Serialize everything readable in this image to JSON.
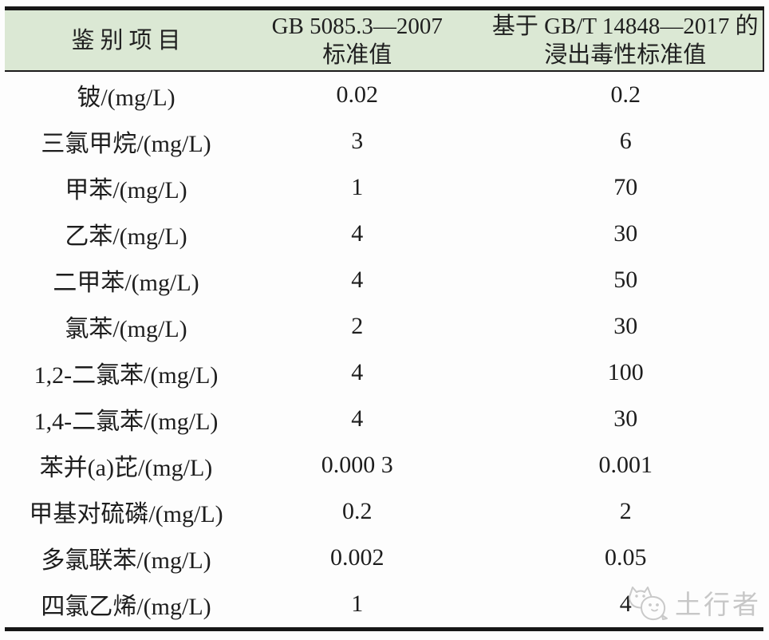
{
  "table": {
    "headers": {
      "item": {
        "line1": "鉴别项目"
      },
      "gb5085": {
        "line1": "GB 5085.3—2007",
        "line2": "标准值"
      },
      "gbt14848": {
        "line1": "基于 GB/T 14848—2017 的",
        "line2": "浸出毒性标准值"
      }
    },
    "rows": [
      {
        "item": "铍/(mg/L)",
        "gb5085": "0.02",
        "gbt14848": "0.2"
      },
      {
        "item": "三氯甲烷/(mg/L)",
        "gb5085": "3",
        "gbt14848": "6"
      },
      {
        "item": "甲苯/(mg/L)",
        "gb5085": "1",
        "gbt14848": "70"
      },
      {
        "item": "乙苯/(mg/L)",
        "gb5085": "4",
        "gbt14848": "30"
      },
      {
        "item": "二甲苯/(mg/L)",
        "gb5085": "4",
        "gbt14848": "50"
      },
      {
        "item": "氯苯/(mg/L)",
        "gb5085": "2",
        "gbt14848": "30"
      },
      {
        "item": "1,2-二氯苯/(mg/L)",
        "gb5085": "4",
        "gbt14848": "100"
      },
      {
        "item": "1,4-二氯苯/(mg/L)",
        "gb5085": "4",
        "gbt14848": "30"
      },
      {
        "item": "苯并(a)芘/(mg/L)",
        "gb5085": "0.000 3",
        "gbt14848": "0.001"
      },
      {
        "item": "甲基对硫磷/(mg/L)",
        "gb5085": "0.2",
        "gbt14848": "2"
      },
      {
        "item": "多氯联苯/(mg/L)",
        "gb5085": "0.002",
        "gbt14848": "0.05"
      },
      {
        "item": "四氯乙烯/(mg/L)",
        "gb5085": "1",
        "gbt14848": "4"
      }
    ]
  },
  "watermark": {
    "text": "土行者"
  },
  "colors": {
    "header_bg": "#dbe8d4",
    "rule": "#161616",
    "text": "#1d1d1d",
    "watermark": "#c7c7c7"
  }
}
